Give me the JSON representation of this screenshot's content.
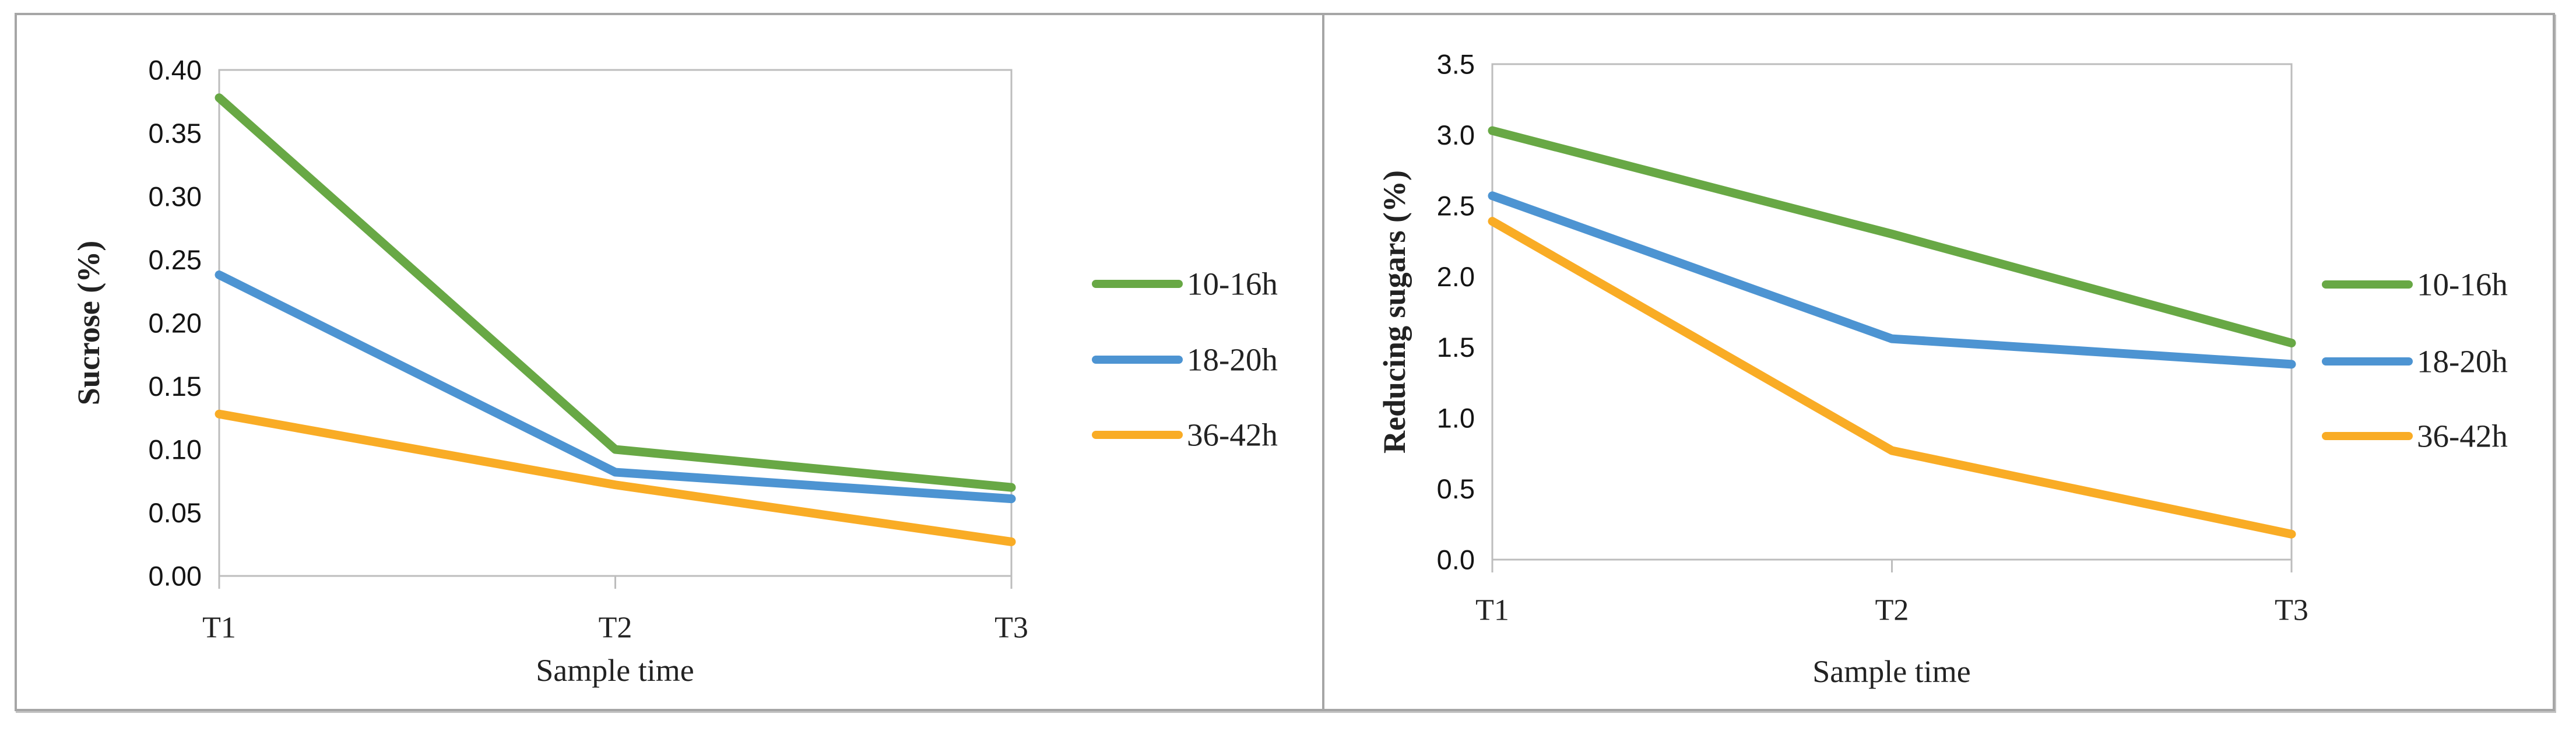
{
  "figure": {
    "background": "#ffffff",
    "frame_border_color": "#a6a6a6",
    "plot_border_color": "#bdbdbd",
    "tick_label_color": "#141414",
    "serif_label_color": "#222222"
  },
  "chart_data": [
    {
      "type": "line",
      "title": "",
      "xlabel": "Sample time",
      "ylabel": "Sucrose (%)",
      "categories": [
        "T1",
        "T2",
        "T3"
      ],
      "series": [
        {
          "name": "10-16h",
          "color": "#68a845",
          "values": [
            0.378,
            0.1,
            0.07
          ]
        },
        {
          "name": "18-20h",
          "color": "#4d94d2",
          "values": [
            0.238,
            0.082,
            0.061
          ]
        },
        {
          "name": "36-42h",
          "color": "#f9ac25",
          "values": [
            0.128,
            0.072,
            0.027
          ]
        }
      ],
      "ylim": [
        0,
        0.4
      ],
      "ytick_step": 0.05,
      "ytick_decimals": 2,
      "ytick_labels": [
        "0.00",
        "0.05",
        "0.10",
        "0.15",
        "0.20",
        "0.25",
        "0.30",
        "0.35",
        "0.40"
      ],
      "grid": false,
      "legend_position": "right",
      "legend_entries": [
        "10-16h",
        "18-20h",
        "36-42h"
      ]
    },
    {
      "type": "line",
      "title": "",
      "xlabel": "Sample time",
      "ylabel": "Reducing sugars (%)",
      "categories": [
        "T1",
        "T2",
        "T3"
      ],
      "series": [
        {
          "name": "10-16h",
          "color": "#68a845",
          "values": [
            3.03,
            2.3,
            1.53
          ]
        },
        {
          "name": "18-20h",
          "color": "#4d94d2",
          "values": [
            2.57,
            1.56,
            1.38
          ]
        },
        {
          "name": "36-42h",
          "color": "#f9ac25",
          "values": [
            2.39,
            0.77,
            0.18
          ]
        }
      ],
      "ylim": [
        0,
        3.5
      ],
      "ytick_step": 0.5,
      "ytick_decimals": 1,
      "ytick_labels": [
        "0.0",
        "0.5",
        "1.0",
        "1.5",
        "2.0",
        "2.5",
        "3.0",
        "3.5"
      ],
      "grid": false,
      "legend_position": "right",
      "legend_entries": [
        "10-16h",
        "18-20h",
        "36-42h"
      ]
    }
  ]
}
